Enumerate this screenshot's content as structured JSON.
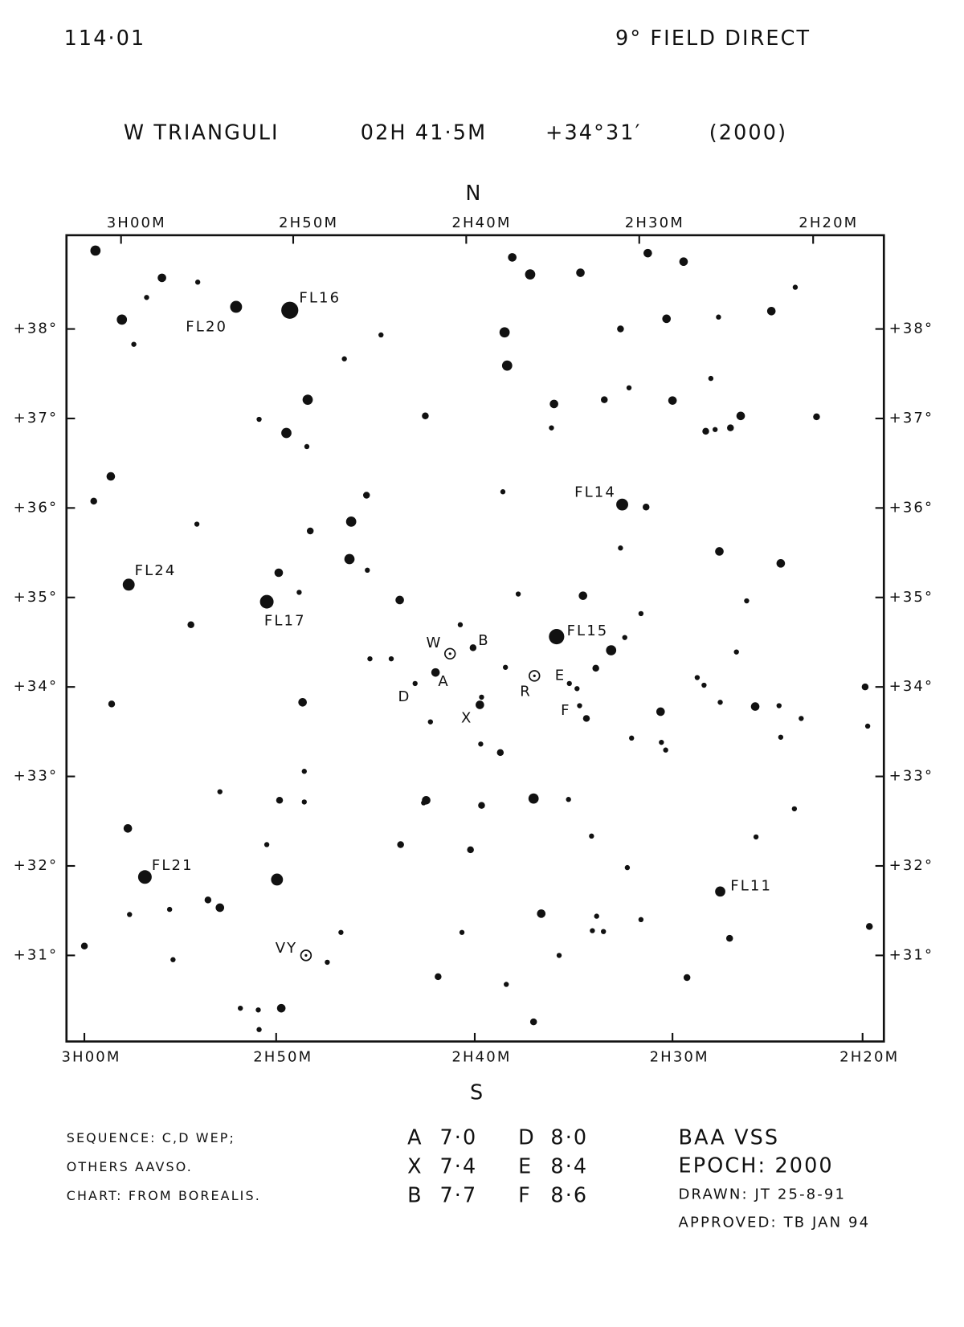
{
  "header": {
    "chart_id": "114·01",
    "field": "9° FIELD DIRECT",
    "title": "W TRIANGULI",
    "ra": "02H 41·5M",
    "dec": "+34°31′",
    "epoch": "(2000)"
  },
  "compass": {
    "north": "N",
    "south": "S"
  },
  "ra_top": [
    "3H00M",
    "2H50M",
    "2H40M",
    "2H30M",
    "2H20M"
  ],
  "ra_bottom": [
    "3H00M",
    "2H50M",
    "2H40M",
    "2H30M",
    "2H20M"
  ],
  "dec_left": [
    "+38°",
    "+37°",
    "+36°",
    "+35°",
    "+34°",
    "+33°",
    "+32°",
    "+31°"
  ],
  "dec_right": [
    "+38°",
    "+37°",
    "+36°",
    "+35°",
    "+34°",
    "+33°",
    "+32°",
    "+31°"
  ],
  "star_labels": [
    "FL16",
    "FL20",
    "FL14",
    "FL24",
    "FL17",
    "FL15",
    "W",
    "B",
    "A",
    "D",
    "R",
    "E",
    "X",
    "F",
    "FL21",
    "FL11",
    "VY"
  ],
  "notes": [
    "SEQUENCE: C,D WEP;",
    "OTHERS AAVSO.",
    "CHART: FROM BOREALIS."
  ],
  "sequence": [
    {
      "star": "A",
      "mag": "7·0"
    },
    {
      "star": "X",
      "mag": "7·4"
    },
    {
      "star": "B",
      "mag": "7·7"
    },
    {
      "star": "D",
      "mag": "8·0"
    },
    {
      "star": "E",
      "mag": "8·4"
    },
    {
      "star": "F",
      "mag": "8·6"
    }
  ],
  "credits": [
    "BAA VSS",
    "EPOCH: 2000",
    "DRAWN: JT 25-8-91",
    "APPROVED: TB JAN 94"
  ]
}
